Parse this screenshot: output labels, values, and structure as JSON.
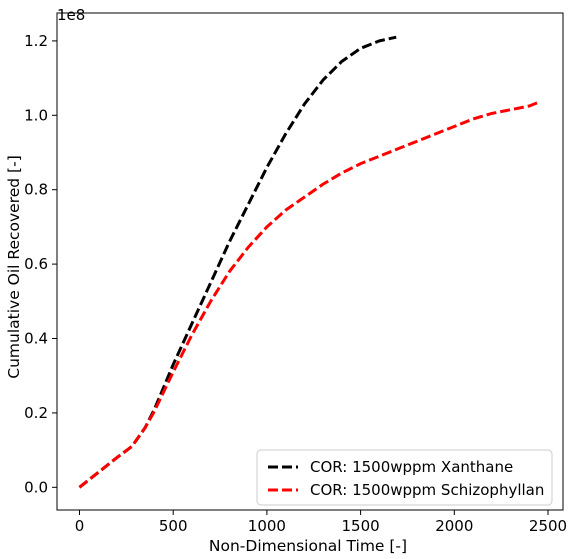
{
  "chart_data": {
    "type": "line",
    "xlabel": "Non-Dimensional Time [-]",
    "ylabel": "Cumulative Oil Recovered [-]",
    "y_offset_label": "1e8",
    "xlim": [
      -120,
      2580
    ],
    "ylim": [
      -6100000,
      127500000
    ],
    "x_ticks": [
      0,
      500,
      1000,
      1500,
      2000,
      2500
    ],
    "x_tick_labels": [
      "0",
      "500",
      "1000",
      "1500",
      "2000",
      "2500"
    ],
    "y_ticks": [
      0,
      20000000,
      40000000,
      60000000,
      80000000,
      100000000,
      120000000
    ],
    "y_tick_labels": [
      "0.0",
      "0.2",
      "0.4",
      "0.6",
      "0.8",
      "1.0",
      "1.2"
    ],
    "grid": false,
    "legend_position": "lower-right",
    "series": [
      {
        "name": "COR: 1500wppm Xanthane",
        "color": "#000000",
        "line_style": "dashed",
        "x": [
          0,
          100,
          200,
          280,
          350,
          400,
          500,
          600,
          700,
          800,
          900,
          1000,
          1100,
          1200,
          1300,
          1400,
          1500,
          1600,
          1690
        ],
        "y": [
          0,
          4000000,
          8000000,
          11000000,
          16000000,
          21000000,
          33000000,
          44000000,
          55000000,
          66000000,
          76000000,
          86000000,
          95000000,
          103000000,
          109500000,
          114500000,
          118000000,
          120000000,
          121000000
        ]
      },
      {
        "name": "COR: 1500wppm Schizophyllan",
        "color": "#ff0000",
        "line_style": "dashed",
        "x": [
          0,
          100,
          200,
          280,
          350,
          400,
          500,
          600,
          700,
          800,
          900,
          1000,
          1100,
          1200,
          1300,
          1400,
          1500,
          1600,
          1700,
          1800,
          1900,
          2000,
          2100,
          2200,
          2300,
          2400,
          2450
        ],
        "y": [
          0,
          4000000,
          8000000,
          11000000,
          16000000,
          20500000,
          31000000,
          41000000,
          50000000,
          58000000,
          64500000,
          70000000,
          74500000,
          78000000,
          81500000,
          84500000,
          87000000,
          89000000,
          91000000,
          93000000,
          95000000,
          97000000,
          99000000,
          100500000,
          101500000,
          102500000,
          103500000
        ]
      }
    ]
  }
}
